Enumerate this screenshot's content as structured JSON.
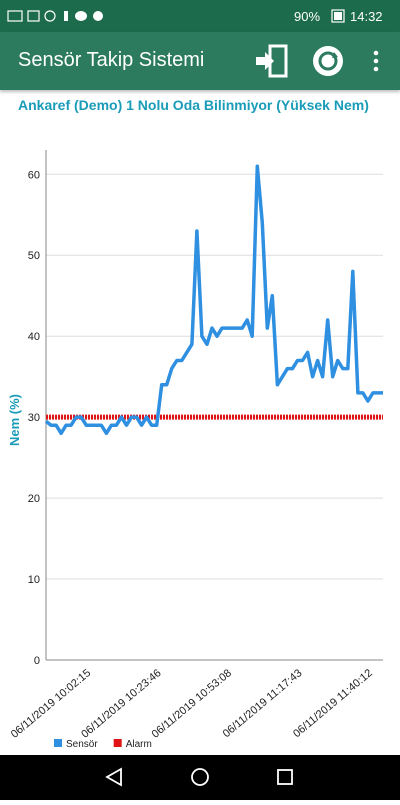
{
  "status_bar": {
    "battery": "90%",
    "time": "14:32"
  },
  "app_bar": {
    "title": "Sensör Takip Sistemi"
  },
  "chart_data": {
    "type": "line",
    "title": "Ankaref (Demo) 1 Nolu Oda Bilinmiyor (Yüksek Nem)",
    "y_label": "Nem (%)",
    "categories": [
      null,
      null,
      null,
      null,
      null,
      null,
      null,
      null,
      null,
      "06/11/2019 10:02:15",
      null,
      null,
      null,
      null,
      null,
      null,
      null,
      null,
      null,
      null,
      null,
      null,
      null,
      "06/11/2019 10:23:46",
      null,
      null,
      null,
      null,
      null,
      null,
      null,
      null,
      null,
      null,
      null,
      null,
      null,
      "06/11/2019 10:53:08",
      null,
      null,
      null,
      null,
      null,
      null,
      null,
      null,
      null,
      null,
      null,
      null,
      null,
      "06/11/2019 11:17:43",
      null,
      null,
      null,
      null,
      null,
      null,
      null,
      null,
      null,
      null,
      null,
      null,
      null,
      "06/11/2019 11:40:12",
      null,
      null
    ],
    "series": [
      {
        "name": "Sensör",
        "color": "#2f8fe0",
        "values": [
          29.5,
          29,
          29,
          28,
          29,
          29,
          30,
          30,
          29,
          29,
          29,
          29,
          28,
          29,
          29,
          30,
          29,
          30,
          30,
          29,
          30,
          29,
          29,
          34,
          34,
          36,
          37,
          37,
          38,
          39,
          53,
          40,
          39,
          41,
          40,
          41,
          41,
          41,
          41,
          41,
          42,
          40,
          61,
          54,
          41,
          45,
          34,
          35,
          36,
          36,
          37,
          37,
          38,
          35,
          37,
          35,
          42,
          35,
          37,
          36,
          36,
          48,
          33,
          33,
          32,
          33,
          33,
          33
        ]
      },
      {
        "name": "Alarm",
        "color": "#e01414",
        "values": [
          30,
          30,
          30,
          30,
          30,
          30,
          30,
          30,
          30,
          30,
          30,
          30,
          30,
          30,
          30,
          30,
          30,
          30,
          30,
          30,
          30,
          30,
          30,
          30,
          30,
          30,
          30,
          30,
          30,
          30,
          30,
          30,
          30,
          30,
          30,
          30,
          30,
          30,
          30,
          30,
          30,
          30,
          30,
          30,
          30,
          30,
          30,
          30,
          30,
          30,
          30,
          30,
          30,
          30,
          30,
          30,
          30,
          30,
          30,
          30,
          30,
          30,
          30,
          30,
          30,
          30,
          30,
          30
        ]
      }
    ],
    "ylim": [
      0,
      63
    ],
    "yticks": [
      0,
      10,
      20,
      30,
      40,
      50,
      60
    ],
    "grid": true,
    "legend": "bottom-left"
  }
}
